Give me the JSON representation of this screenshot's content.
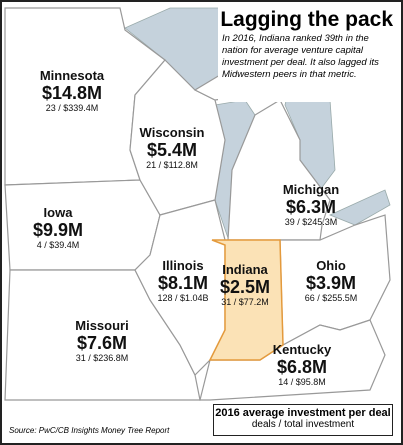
{
  "title": "Lagging the pack",
  "description": "In 2016, Indiana ranked 39th in the nation for average venture capital investment per deal. It also lagged its Midwestern peers in that metric.",
  "states": [
    {
      "name": "Minnesota",
      "average": "$14.8M",
      "detail": "23 / $339.4M"
    },
    {
      "name": "Wisconsin",
      "average": "$5.4M",
      "detail": "21 / $112.8M"
    },
    {
      "name": "Michigan",
      "average": "$6.3M",
      "detail": "39 / $245.3M"
    },
    {
      "name": "Iowa",
      "average": "$9.9M",
      "detail": "4 / $39.4M"
    },
    {
      "name": "Illinois",
      "average": "$8.1M",
      "detail": "128 / $1.04B"
    },
    {
      "name": "Indiana",
      "average": "$2.5M",
      "detail": "31 / $77.2M"
    },
    {
      "name": "Ohio",
      "average": "$3.9M",
      "detail": "66 / $255.5M"
    },
    {
      "name": "Missouri",
      "average": "$7.6M",
      "detail": "31 / $236.8M"
    },
    {
      "name": "Kentucky",
      "average": "$6.8M",
      "detail": "14 / $95.8M"
    }
  ],
  "legend": {
    "title": "2016 average investment per deal",
    "subtitle": "deals / total investment"
  },
  "source": "Source: PwC/CB Insights Money Tree Report"
}
